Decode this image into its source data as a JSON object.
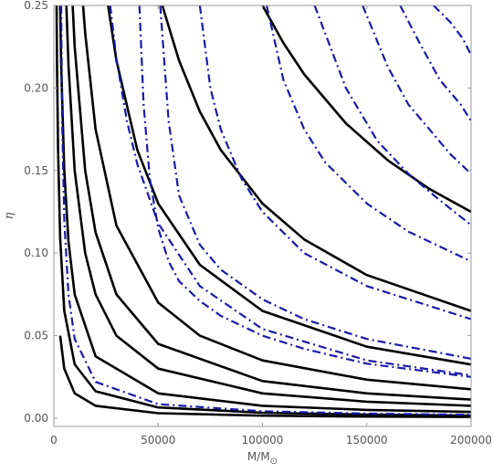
{
  "chart_data": {
    "type": "line",
    "title": "",
    "xlabel": "M/M⊙",
    "ylabel": "η",
    "xlim": [
      0,
      200000
    ],
    "ylim": [
      -0.005,
      0.25
    ],
    "x_ticks": [
      0,
      50000,
      100000,
      150000,
      200000
    ],
    "x_tick_labels": [
      "0",
      "50000",
      "100000",
      "150000",
      "200000"
    ],
    "y_ticks": [
      0.0,
      0.05,
      0.1,
      0.15,
      0.2,
      0.25
    ],
    "y_tick_labels": [
      "0.00",
      "0.05",
      "0.10",
      "0.15",
      "0.20",
      "0.25"
    ],
    "grid": false,
    "legend": "none",
    "colors": {
      "solid": "#000000",
      "dashdot": "#1a1aa6",
      "axis": "#999999"
    },
    "series": [
      {
        "style": "solid",
        "x": [
          1300,
          1500,
          2000,
          3000,
          5000,
          10000,
          20000,
          50000,
          100000,
          150000,
          200000
        ],
        "y": [
          0.25,
          0.217,
          0.163,
          0.109,
          0.065,
          0.0326,
          0.0163,
          0.0065,
          0.0033,
          0.0022,
          0.0016
        ]
      },
      {
        "style": "solid",
        "x": [
          3000,
          3500,
          5000,
          7000,
          10000,
          20000,
          50000,
          100000,
          150000,
          200000
        ],
        "y": [
          0.25,
          0.214,
          0.15,
          0.107,
          0.075,
          0.0375,
          0.015,
          0.0075,
          0.005,
          0.0038
        ]
      },
      {
        "style": "solid",
        "x": [
          6000,
          7000,
          10000,
          15000,
          20000,
          30000,
          50000,
          100000,
          150000,
          200000
        ],
        "y": [
          0.25,
          0.214,
          0.15,
          0.1,
          0.075,
          0.05,
          0.03,
          0.015,
          0.01,
          0.0075
        ]
      },
      {
        "style": "solid",
        "x": [
          9000,
          10000,
          15000,
          20000,
          30000,
          50000,
          100000,
          150000,
          200000
        ],
        "y": [
          0.25,
          0.225,
          0.15,
          0.1125,
          0.075,
          0.045,
          0.0225,
          0.015,
          0.01125
        ]
      },
      {
        "style": "solid",
        "x": [
          14000,
          15000,
          20000,
          30000,
          50000,
          70000,
          100000,
          150000,
          200000
        ],
        "y": [
          0.25,
          0.2333,
          0.175,
          0.1167,
          0.07,
          0.05,
          0.035,
          0.0233,
          0.0175
        ]
      },
      {
        "style": "solid",
        "x": [
          26000,
          30000,
          40000,
          50000,
          70000,
          100000,
          150000,
          200000
        ],
        "y": [
          0.25,
          0.2167,
          0.1625,
          0.13,
          0.0929,
          0.065,
          0.0433,
          0.0325
        ]
      },
      {
        "style": "solid",
        "x": [
          52000,
          60000,
          70000,
          80000,
          100000,
          120000,
          150000,
          200000
        ],
        "y": [
          0.25,
          0.2167,
          0.1857,
          0.1625,
          0.13,
          0.1083,
          0.0867,
          0.065
        ]
      },
      {
        "style": "solid",
        "x": [
          100000,
          110000,
          120000,
          140000,
          160000,
          180000,
          200000
        ],
        "y": [
          0.25,
          0.2273,
          0.2083,
          0.1786,
          0.1563,
          0.1389,
          0.125
        ]
      },
      {
        "style": "solid",
        "x": [
          3000,
          5000,
          10000,
          20000,
          50000,
          100000,
          150000,
          200000
        ],
        "y": [
          0.05,
          0.03,
          0.015,
          0.0075,
          0.003,
          0.0015,
          0.001,
          0.00075
        ]
      },
      {
        "style": "dashdot",
        "x": [
          3500,
          4000,
          5000,
          7000,
          10000,
          20000,
          50000,
          100000,
          150000,
          200000
        ],
        "y": [
          0.25,
          0.18,
          0.12,
          0.075,
          0.048,
          0.022,
          0.0085,
          0.0042,
          0.0028,
          0.0021
        ]
      },
      {
        "style": "dashdot",
        "x": [
          27000,
          30000,
          35000,
          40000,
          50000,
          70000,
          100000,
          150000,
          200000
        ],
        "y": [
          0.25,
          0.218,
          0.18,
          0.154,
          0.118,
          0.08,
          0.054,
          0.035,
          0.026
        ]
      },
      {
        "style": "dashdot",
        "x": [
          41000,
          43000,
          46000,
          50000,
          55000,
          60000,
          70000,
          80000,
          100000,
          120000,
          150000,
          200000
        ],
        "y": [
          0.25,
          0.19,
          0.145,
          0.115,
          0.095,
          0.083,
          0.071,
          0.062,
          0.05,
          0.042,
          0.033,
          0.025
        ]
      },
      {
        "style": "dashdot",
        "x": [
          51000,
          55000,
          60000,
          70000,
          80000,
          100000,
          120000,
          150000,
          200000
        ],
        "y": [
          0.25,
          0.18,
          0.135,
          0.105,
          0.09,
          0.072,
          0.06,
          0.048,
          0.036
        ]
      },
      {
        "style": "dashdot",
        "x": [
          70000,
          75000,
          80000,
          90000,
          100000,
          120000,
          150000,
          200000
        ],
        "y": [
          0.25,
          0.2,
          0.175,
          0.145,
          0.125,
          0.1,
          0.08,
          0.06
        ]
      },
      {
        "style": "dashdot",
        "x": [
          102000,
          110000,
          120000,
          130000,
          150000,
          170000,
          200000
        ],
        "y": [
          0.25,
          0.205,
          0.175,
          0.155,
          0.13,
          0.113,
          0.095
        ]
      },
      {
        "style": "dashdot",
        "x": [
          125000,
          140000,
          155000,
          170000,
          185000,
          200000
        ],
        "y": [
          0.25,
          0.2,
          0.168,
          0.148,
          0.132,
          0.117
        ]
      },
      {
        "style": "dashdot",
        "x": [
          148000,
          160000,
          170000,
          180000,
          190000,
          200000
        ],
        "y": [
          0.25,
          0.213,
          0.19,
          0.175,
          0.16,
          0.148
        ]
      },
      {
        "style": "dashdot",
        "x": [
          166000,
          175000,
          185000,
          195000,
          200000
        ],
        "y": [
          0.25,
          0.228,
          0.205,
          0.19,
          0.18
        ]
      },
      {
        "style": "dashdot",
        "x": [
          182000,
          190000,
          196000,
          200000
        ],
        "y": [
          0.25,
          0.24,
          0.23,
          0.22
        ]
      }
    ]
  }
}
